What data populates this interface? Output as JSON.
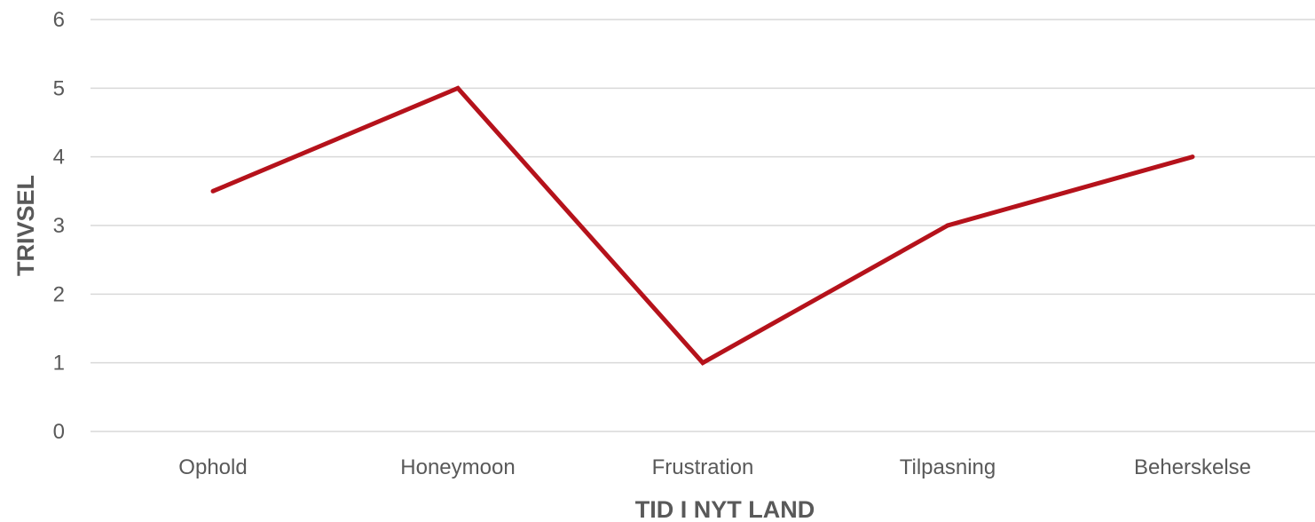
{
  "chart_data": {
    "type": "line",
    "title": "",
    "xlabel": "TID I NYT LAND",
    "ylabel": "TRIVSEL",
    "categories": [
      "Ophold",
      "Honeymoon",
      "Frustration",
      "Tilpasning",
      "Beherskelse"
    ],
    "series": [
      {
        "values": [
          3.5,
          5,
          1,
          3,
          4
        ],
        "color": "#b5121b"
      }
    ],
    "ylim": [
      0,
      6
    ],
    "yticks": [
      "0",
      "1",
      "2",
      "3",
      "4",
      "5",
      "6"
    ],
    "grid": true,
    "legend": "none"
  }
}
